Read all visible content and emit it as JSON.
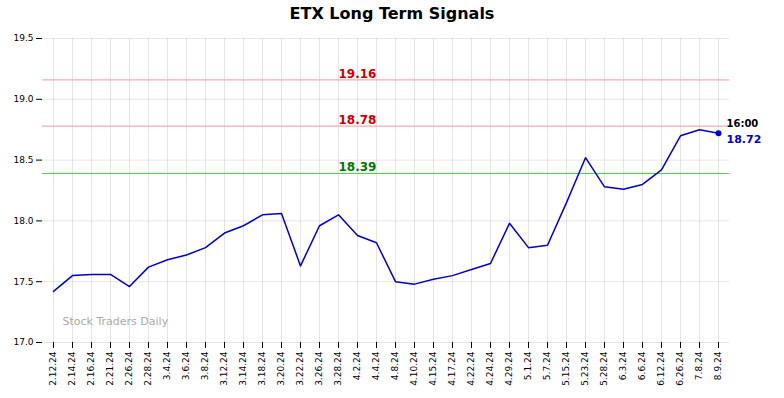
{
  "chart_data": {
    "type": "line",
    "title": "ETX Long Term Signals",
    "categories": [
      "2.12.24",
      "2.14.24",
      "2.16.24",
      "2.21.24",
      "2.26.24",
      "2.28.24",
      "3.4.24",
      "3.6.24",
      "3.8.24",
      "3.12.24",
      "3.14.24",
      "3.18.24",
      "3.20.24",
      "3.22.24",
      "3.26.24",
      "3.28.24",
      "4.2.24",
      "4.4.24",
      "4.8.24",
      "4.10.24",
      "4.15.24",
      "4.17.24",
      "4.22.24",
      "4.24.24",
      "4.29.24",
      "5.1.24",
      "5.7.24",
      "5.15.24",
      "5.23.24",
      "5.28.24",
      "6.3.24",
      "6.6.24",
      "6.12.24",
      "6.26.24",
      "7.8.24",
      "8.9.24"
    ],
    "values": [
      17.42,
      17.55,
      17.56,
      17.56,
      17.46,
      17.62,
      17.68,
      17.72,
      17.78,
      17.9,
      17.96,
      18.05,
      18.06,
      17.63,
      17.96,
      18.05,
      17.88,
      17.82,
      17.5,
      17.48,
      17.52,
      17.55,
      17.6,
      17.65,
      17.98,
      17.78,
      17.8,
      18.15,
      18.52,
      18.28,
      18.26,
      18.3,
      18.42,
      18.7,
      18.75,
      18.72
    ],
    "color": "#0000cc",
    "ylim": [
      17.0,
      19.5
    ],
    "yticks": [
      {
        "value": 17.0,
        "label": "17.0"
      },
      {
        "value": 17.5,
        "label": "17.5"
      },
      {
        "value": 18.0,
        "label": "18.0"
      },
      {
        "value": 18.5,
        "label": "18.5"
      },
      {
        "value": 19.0,
        "label": "19.0"
      },
      {
        "value": 19.5,
        "label": "19.5"
      }
    ],
    "grid": true,
    "hlines": [
      {
        "value": 19.16,
        "label": "19.16",
        "color": "#ffaaaa",
        "label_color": "#cc0000"
      },
      {
        "value": 18.78,
        "label": "18.78",
        "color": "#ffaaaa",
        "label_color": "#cc0000"
      },
      {
        "value": 18.39,
        "label": "18.39",
        "color": "#44dd44",
        "label_color": "#007700"
      }
    ],
    "annotations": [
      {
        "text": "16:00",
        "color": "#000000"
      },
      {
        "text": "18.72",
        "color": "#0000cc"
      }
    ],
    "watermark": {
      "text": "Stock Traders Daily",
      "color": "#aaaaaa"
    }
  }
}
